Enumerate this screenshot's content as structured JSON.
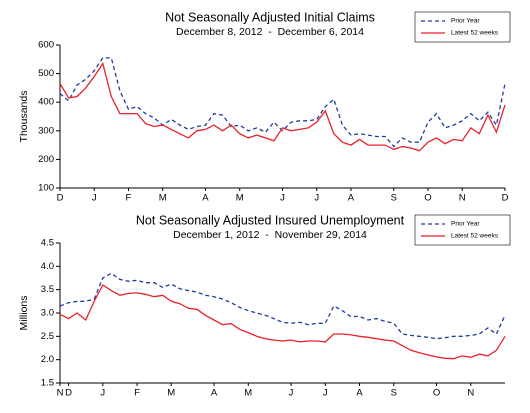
{
  "chart_data": [
    {
      "type": "line",
      "title": "Not Seasonally Adjusted Initial Claims",
      "subtitle": "December 8, 2012  -  December 6, 2014",
      "y_label": "Thousands",
      "categories": [
        "D",
        null,
        null,
        null,
        "J",
        null,
        null,
        null,
        "F",
        null,
        null,
        null,
        "M",
        null,
        null,
        null,
        null,
        "A",
        null,
        null,
        null,
        "M",
        null,
        null,
        null,
        null,
        "J",
        null,
        null,
        null,
        "J",
        null,
        null,
        null,
        "A",
        null,
        null,
        null,
        null,
        "S",
        null,
        null,
        null,
        "O",
        null,
        null,
        null,
        "N",
        null,
        null,
        null,
        null,
        "D"
      ],
      "series": [
        {
          "name": "Prior Year",
          "color": "#1f3d99",
          "dashed": true,
          "values": [
            430,
            405,
            460,
            480,
            510,
            555,
            555,
            440,
            375,
            385,
            360,
            345,
            320,
            340,
            320,
            305,
            315,
            320,
            360,
            355,
            315,
            320,
            300,
            310,
            295,
            330,
            300,
            330,
            335,
            335,
            340,
            385,
            410,
            320,
            285,
            290,
            285,
            280,
            280,
            245,
            275,
            260,
            260,
            330,
            360,
            310,
            320,
            335,
            360,
            335,
            365,
            320,
            465
          ]
        },
        {
          "name": "Latest 52 weeks",
          "color": "#e8222a",
          "dashed": false,
          "values": [
            465,
            415,
            420,
            450,
            490,
            535,
            420,
            360,
            360,
            360,
            325,
            315,
            320,
            305,
            290,
            275,
            300,
            305,
            320,
            300,
            320,
            290,
            275,
            285,
            275,
            265,
            310,
            300,
            305,
            310,
            330,
            370,
            290,
            260,
            250,
            270,
            250,
            250,
            250,
            235,
            245,
            240,
            230,
            260,
            275,
            255,
            270,
            265,
            310,
            290,
            355,
            295,
            390
          ]
        }
      ],
      "ylim": [
        100,
        600
      ],
      "yticks": [
        100,
        200,
        300,
        400,
        500,
        600
      ]
    },
    {
      "type": "line",
      "title": "Not Seasonally Adjusted Insured Unemployment",
      "subtitle": "December 1, 2012  -  November 29, 2014",
      "y_label": "Millions",
      "categories": [
        "N",
        "D",
        null,
        null,
        null,
        "J",
        null,
        null,
        null,
        "F",
        null,
        null,
        null,
        "M",
        null,
        null,
        null,
        null,
        "A",
        null,
        null,
        null,
        "M",
        null,
        null,
        null,
        null,
        "J",
        null,
        null,
        null,
        "J",
        null,
        null,
        null,
        "A",
        null,
        null,
        null,
        "S",
        null,
        null,
        null,
        null,
        "O",
        null,
        null,
        null,
        "N",
        null,
        null,
        null,
        null
      ],
      "series": [
        {
          "name": "Prior Year",
          "color": "#1f3d99",
          "dashed": true,
          "values": [
            3.15,
            3.22,
            3.25,
            3.25,
            3.3,
            3.75,
            3.85,
            3.72,
            3.68,
            3.7,
            3.65,
            3.65,
            3.55,
            3.62,
            3.52,
            3.48,
            3.45,
            3.38,
            3.35,
            3.3,
            3.22,
            3.12,
            3.05,
            3.0,
            2.95,
            2.88,
            2.8,
            2.78,
            2.8,
            2.75,
            2.78,
            2.78,
            3.15,
            3.05,
            2.92,
            2.93,
            2.85,
            2.88,
            2.82,
            2.78,
            2.55,
            2.52,
            2.5,
            2.48,
            2.45,
            2.47,
            2.5,
            2.5,
            2.52,
            2.55,
            2.68,
            2.55,
            2.95
          ]
        },
        {
          "name": "Latest 52 weeks",
          "color": "#e8222a",
          "dashed": false,
          "values": [
            2.97,
            2.88,
            3.0,
            2.85,
            3.25,
            3.6,
            3.48,
            3.38,
            3.42,
            3.43,
            3.4,
            3.35,
            3.38,
            3.25,
            3.2,
            3.1,
            3.08,
            2.95,
            2.85,
            2.75,
            2.77,
            2.65,
            2.58,
            2.5,
            2.45,
            2.42,
            2.4,
            2.42,
            2.38,
            2.4,
            2.4,
            2.38,
            2.55,
            2.55,
            2.53,
            2.5,
            2.48,
            2.45,
            2.42,
            2.4,
            2.3,
            2.2,
            2.15,
            2.1,
            2.06,
            2.03,
            2.02,
            2.08,
            2.05,
            2.12,
            2.08,
            2.2,
            2.5
          ]
        }
      ],
      "ylim": [
        1.5,
        4.5
      ],
      "yticks": [
        {
          "value": 1.5,
          "label": "1.5"
        },
        {
          "value": 2.0,
          "label": "2.0"
        },
        {
          "value": 2.5,
          "label": "2.5"
        },
        {
          "value": 3.0,
          "label": "3.0"
        },
        {
          "value": 3.5,
          "label": "3.5"
        },
        {
          "value": 4.0,
          "label": "4.0"
        },
        {
          "value": 4.5,
          "label": "4.5"
        }
      ]
    }
  ]
}
